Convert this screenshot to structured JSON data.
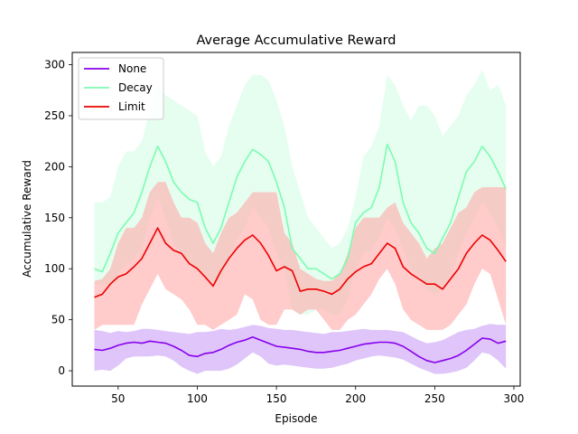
{
  "chart_data": {
    "type": "line",
    "title": "Average Accumulative Reward",
    "xlabel": "Episode",
    "ylabel": "Accumulative Reward",
    "xlim": [
      21,
      304
    ],
    "ylim": [
      -15,
      312
    ],
    "xticks": [
      50,
      100,
      150,
      200,
      250,
      300
    ],
    "yticks": [
      0,
      50,
      100,
      150,
      200,
      250,
      300
    ],
    "grid": false,
    "legend_position": "top-left",
    "series": [
      {
        "name": "None",
        "color": "#8800ee",
        "band_color": "#c99ff5",
        "x": [
          35,
          40,
          45,
          50,
          55,
          60,
          65,
          70,
          75,
          80,
          85,
          90,
          95,
          100,
          105,
          110,
          115,
          120,
          125,
          130,
          135,
          140,
          145,
          150,
          155,
          160,
          165,
          170,
          175,
          180,
          185,
          190,
          195,
          200,
          205,
          210,
          215,
          220,
          225,
          230,
          235,
          240,
          245,
          250,
          255,
          260,
          265,
          270,
          275,
          280,
          285,
          290,
          295
        ],
        "mean": [
          21,
          20,
          22,
          25,
          27,
          28,
          27,
          29,
          28,
          27,
          24,
          20,
          15,
          14,
          17,
          18,
          21,
          25,
          28,
          30,
          33,
          30,
          27,
          24,
          23,
          22,
          21,
          19,
          18,
          18,
          19,
          20,
          22,
          24,
          26,
          27,
          28,
          28,
          27,
          24,
          19,
          14,
          10,
          8,
          10,
          12,
          15,
          20,
          26,
          32,
          31,
          27,
          29
        ],
        "upper": [
          40,
          39,
          37,
          39,
          38,
          39,
          41,
          41,
          40,
          39,
          38,
          37,
          36,
          38,
          38,
          39,
          41,
          40,
          41,
          43,
          45,
          44,
          42,
          41,
          40,
          40,
          39,
          38,
          37,
          36,
          38,
          38,
          39,
          40,
          41,
          40,
          40,
          40,
          39,
          38,
          34,
          30,
          27,
          28,
          30,
          34,
          38,
          40,
          41,
          44,
          46,
          45,
          45
        ],
        "lower": [
          0,
          1,
          0,
          5,
          12,
          14,
          14,
          14,
          15,
          14,
          10,
          4,
          0,
          -3,
          0,
          0,
          0,
          2,
          6,
          12,
          18,
          14,
          7,
          5,
          6,
          5,
          4,
          3,
          2,
          2,
          3,
          5,
          7,
          10,
          12,
          14,
          15,
          14,
          13,
          11,
          7,
          3,
          0,
          -3,
          -3,
          -2,
          0,
          3,
          10,
          18,
          16,
          10,
          2
        ]
      },
      {
        "name": "Decay",
        "color": "#7cfcb0",
        "band_color": "#d4fde6",
        "x": [
          35,
          40,
          45,
          50,
          55,
          60,
          65,
          70,
          75,
          80,
          85,
          90,
          95,
          100,
          105,
          110,
          115,
          120,
          125,
          130,
          135,
          140,
          145,
          150,
          155,
          160,
          165,
          170,
          175,
          180,
          185,
          190,
          195,
          200,
          205,
          210,
          215,
          220,
          225,
          230,
          235,
          240,
          245,
          250,
          255,
          260,
          265,
          270,
          275,
          280,
          285,
          290,
          295
        ],
        "mean": [
          100,
          97,
          115,
          135,
          145,
          155,
          175,
          200,
          220,
          205,
          185,
          175,
          168,
          165,
          140,
          125,
          140,
          165,
          190,
          205,
          217,
          212,
          205,
          185,
          160,
          120,
          110,
          100,
          100,
          95,
          90,
          95,
          110,
          145,
          155,
          160,
          180,
          222,
          205,
          165,
          145,
          135,
          120,
          115,
          130,
          145,
          170,
          195,
          205,
          220,
          210,
          195,
          178
        ],
        "upper": [
          165,
          165,
          170,
          200,
          215,
          215,
          225,
          255,
          280,
          270,
          265,
          260,
          255,
          250,
          215,
          200,
          210,
          240,
          260,
          280,
          290,
          290,
          285,
          265,
          240,
          200,
          175,
          150,
          140,
          130,
          120,
          125,
          140,
          170,
          210,
          220,
          240,
          290,
          280,
          260,
          245,
          260,
          260,
          250,
          230,
          240,
          250,
          270,
          280,
          295,
          275,
          280,
          260
        ],
        "lower": [
          85,
          85,
          85,
          95,
          105,
          110,
          120,
          150,
          170,
          150,
          125,
          115,
          105,
          100,
          95,
          85,
          90,
          110,
          130,
          140,
          160,
          150,
          140,
          115,
          100,
          60,
          55,
          55,
          60,
          60,
          55,
          55,
          70,
          100,
          115,
          120,
          130,
          150,
          140,
          120,
          100,
          95,
          80,
          75,
          80,
          95,
          115,
          135,
          150,
          165,
          155,
          140,
          120
        ]
      },
      {
        "name": "Limit",
        "color": "#ee0000",
        "band_color": "#ffa8a8",
        "x": [
          35,
          40,
          45,
          50,
          55,
          60,
          65,
          70,
          75,
          80,
          85,
          90,
          95,
          100,
          105,
          110,
          115,
          120,
          125,
          130,
          135,
          140,
          145,
          150,
          155,
          160,
          165,
          170,
          175,
          180,
          185,
          190,
          195,
          200,
          205,
          210,
          215,
          220,
          225,
          230,
          235,
          240,
          245,
          250,
          255,
          260,
          265,
          270,
          275,
          280,
          285,
          290,
          295
        ],
        "mean": [
          72,
          75,
          85,
          92,
          95,
          102,
          110,
          125,
          140,
          125,
          118,
          115,
          105,
          100,
          92,
          83,
          98,
          110,
          120,
          128,
          133,
          125,
          113,
          98,
          102,
          98,
          78,
          80,
          80,
          78,
          75,
          80,
          90,
          97,
          102,
          105,
          115,
          125,
          120,
          102,
          95,
          90,
          85,
          85,
          80,
          90,
          100,
          115,
          125,
          133,
          128,
          118,
          107
        ],
        "upper": [
          88,
          90,
          100,
          125,
          140,
          140,
          150,
          175,
          185,
          185,
          165,
          150,
          150,
          145,
          125,
          115,
          135,
          150,
          155,
          165,
          175,
          175,
          175,
          175,
          135,
          125,
          100,
          95,
          90,
          88,
          88,
          95,
          115,
          140,
          150,
          150,
          150,
          160,
          165,
          145,
          135,
          125,
          110,
          120,
          125,
          140,
          155,
          160,
          175,
          180,
          180,
          180,
          180
        ],
        "lower": [
          40,
          45,
          45,
          45,
          45,
          45,
          65,
          80,
          95,
          80,
          75,
          70,
          60,
          45,
          45,
          40,
          45,
          50,
          55,
          75,
          70,
          50,
          45,
          45,
          60,
          60,
          55,
          60,
          60,
          50,
          40,
          40,
          50,
          55,
          65,
          75,
          90,
          100,
          85,
          60,
          50,
          45,
          40,
          40,
          40,
          45,
          55,
          65,
          85,
          100,
          95,
          70,
          45
        ]
      }
    ]
  }
}
